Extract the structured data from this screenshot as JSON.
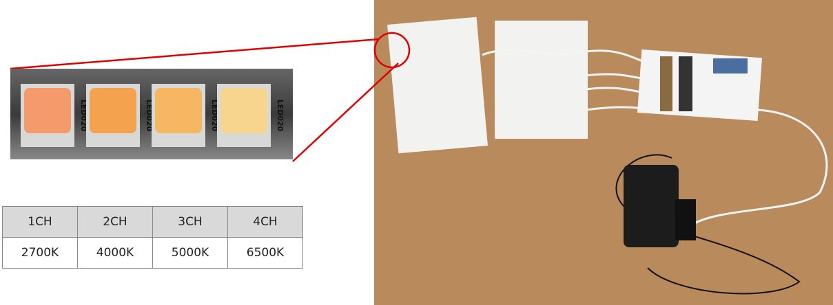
{
  "zoom": {
    "chip_labels": [
      "LED020",
      "LED020",
      "LED020",
      "LED020"
    ]
  },
  "table": {
    "header": [
      "1CH",
      "2CH",
      "3CH",
      "4CH"
    ],
    "rows": [
      [
        "2700K",
        "4000K",
        "5000K",
        "6500K"
      ]
    ]
  }
}
